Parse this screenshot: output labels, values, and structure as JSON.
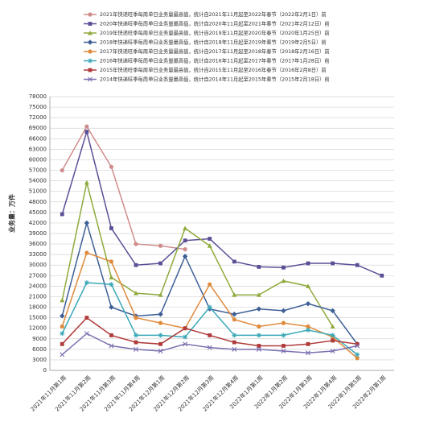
{
  "chart_data": {
    "type": "line",
    "y_label": "业务量：万件",
    "categories": [
      "2021年11月第1周",
      "2021年11月第2周",
      "2021年11月第3周",
      "2021年11月第4周",
      "2021年12月第1周",
      "2021年12月第2周",
      "2021年12月第3周",
      "2021年12月第4周",
      "2022年1月第1周",
      "2022年1月第2周",
      "2022年1月第3周",
      "2022年1月第4周",
      "2022年1月第5周",
      "2022年2月第1周"
    ],
    "ylim": [
      0,
      78000
    ],
    "yticks": [
      0,
      3000,
      6000,
      9000,
      12000,
      15000,
      18000,
      21000,
      24000,
      27000,
      30000,
      33000,
      36000,
      39000,
      42000,
      45000,
      48000,
      51000,
      54000,
      57000,
      60000,
      63000,
      66000,
      69000,
      72000,
      75000,
      78000
    ],
    "grid": true,
    "series": [
      {
        "name": "2021年快递旺季每周单日业务量最高值，统计自2021年11月起至2022年春节（2022年2月1日）前",
        "color": "#d08c8c",
        "marker": "circle",
        "values": [
          57000,
          69500,
          58000,
          36000,
          35500,
          34500,
          null,
          null,
          null,
          null,
          null,
          null,
          null,
          null
        ]
      },
      {
        "name": "2020年快递旺季每周单日业务量最高值，统计自2020年11月起至2021年春节（2021年2月12日）前",
        "color": "#5b4f96",
        "marker": "square",
        "values": [
          44500,
          68000,
          40500,
          30000,
          30500,
          37000,
          37500,
          31000,
          29500,
          29300,
          30500,
          30500,
          30000,
          27000
        ]
      },
      {
        "name": "2019年快递旺季每周单日业务量最高值，统计自2019年11月起至2020年春节（2020年1月25日）前",
        "color": "#8faa3c",
        "marker": "triangle",
        "values": [
          20000,
          53500,
          26500,
          22000,
          21500,
          40500,
          35500,
          21500,
          21500,
          25500,
          24000,
          12500,
          null,
          null
        ]
      },
      {
        "name": "2018年快递旺季每周单日业务量最高值，统计自2018年11月起至2019年春节（2019年2月5日）前",
        "color": "#3d5f96",
        "marker": "diamond",
        "values": [
          15500,
          42000,
          18000,
          15500,
          16000,
          32500,
          17500,
          16000,
          17500,
          17000,
          19000,
          17000,
          7500,
          null
        ]
      },
      {
        "name": "2017年快递旺季每周单日业务量最高值，统计自2017年11月起至2018年春节（2018年2月16日）前",
        "color": "#e08a3c",
        "marker": "circle",
        "values": [
          12500,
          33500,
          31000,
          15000,
          13500,
          12000,
          24500,
          14500,
          12500,
          13500,
          12500,
          9500,
          3500,
          null
        ]
      },
      {
        "name": "2016年快递旺季每周单日业务量最高值，统计自2016年11月起至2017年春节（2017年1月28日）前",
        "color": "#3aa8b8",
        "marker": "star",
        "values": [
          10500,
          25000,
          24500,
          10000,
          10000,
          9500,
          18000,
          10000,
          10000,
          10000,
          11500,
          10000,
          4500,
          null
        ]
      },
      {
        "name": "2015年快递旺季每周单日业务量最高值，统计自2015年11月起至2016年春节（2016年2月8日）前",
        "color": "#b03a3a",
        "marker": "square",
        "values": [
          7500,
          15000,
          10000,
          8000,
          7500,
          12000,
          10000,
          8000,
          7000,
          7000,
          7500,
          8500,
          7500,
          null
        ]
      },
      {
        "name": "2014年快递旺季每周单日业务量最高值，统计自2014年11月起至2015年春节（2015年2月18日）前",
        "color": "#7a70b0",
        "marker": "cross",
        "values": [
          4500,
          10500,
          7000,
          6000,
          5500,
          7500,
          6500,
          6000,
          6000,
          5500,
          5000,
          5500,
          7000,
          null
        ]
      }
    ]
  }
}
